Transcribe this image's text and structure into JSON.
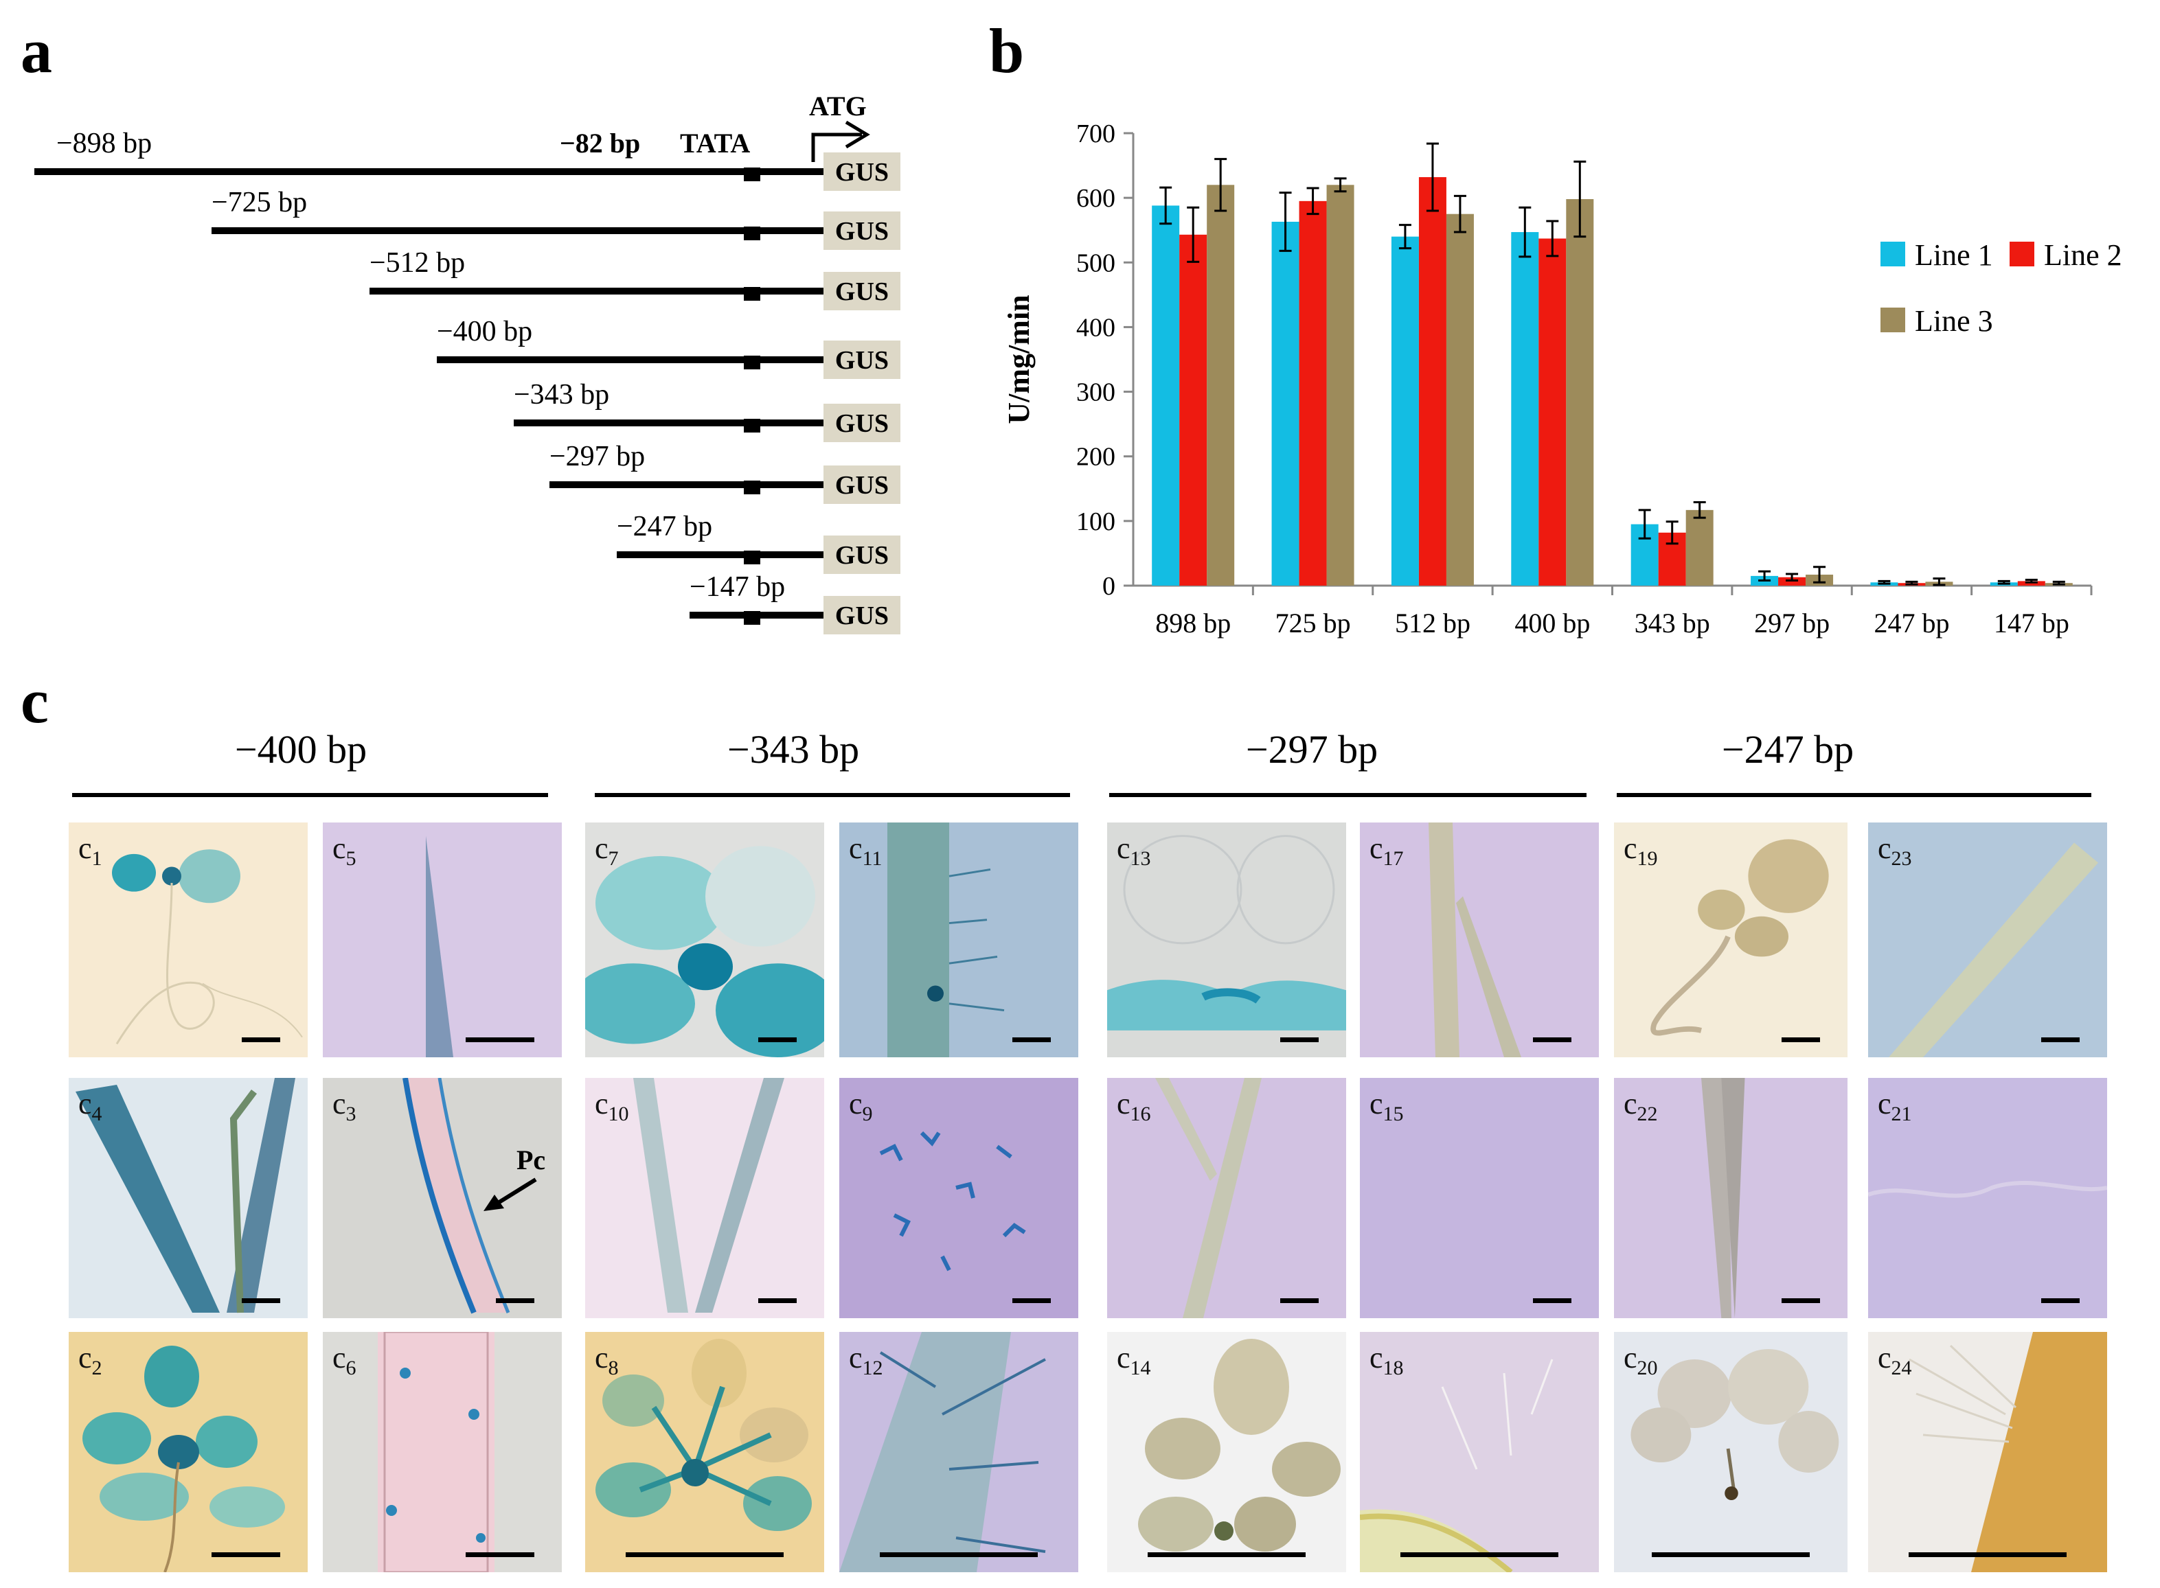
{
  "panel_a": {
    "letter": "a",
    "atg_label": "ATG",
    "tata_pos_label": "−82 bp",
    "tata_label": "TATA",
    "gus_label": "GUS",
    "constructs": [
      {
        "label": "−898 bp"
      },
      {
        "label": "−725 bp"
      },
      {
        "label": "−512 bp"
      },
      {
        "label": "−400 bp"
      },
      {
        "label": "−343 bp"
      },
      {
        "label": "−297 bp"
      },
      {
        "label": "−247 bp"
      },
      {
        "label": "−147 bp"
      }
    ]
  },
  "panel_b": {
    "letter": "b"
  },
  "chart_data": {
    "type": "bar",
    "title": "",
    "xlabel": "",
    "ylabel": "U/mg/min",
    "ylim": [
      0,
      700
    ],
    "yticks": [
      0,
      100,
      200,
      300,
      400,
      500,
      600,
      700
    ],
    "grid": false,
    "legend_position": "right",
    "categories": [
      "898 bp",
      "725 bp",
      "512 bp",
      "400 bp",
      "343 bp",
      "297 bp",
      "247 bp",
      "147 bp"
    ],
    "series": [
      {
        "name": "Line 1",
        "color": "#13bde3",
        "values": [
          588,
          563,
          540,
          547,
          95,
          15,
          5,
          5
        ],
        "errors": [
          28,
          45,
          18,
          38,
          22,
          7,
          2,
          2
        ]
      },
      {
        "name": "Line 2",
        "color": "#ee1a10",
        "values": [
          543,
          595,
          632,
          537,
          82,
          13,
          4,
          7
        ],
        "errors": [
          42,
          20,
          52,
          27,
          17,
          5,
          2,
          2
        ]
      },
      {
        "name": "Line 3",
        "color": "#9d8b5b",
        "values": [
          620,
          620,
          575,
          598,
          117,
          17,
          6,
          4
        ],
        "errors": [
          40,
          10,
          28,
          58,
          12,
          12,
          5,
          2
        ]
      }
    ]
  },
  "panel_c": {
    "letter": "c",
    "groups": [
      {
        "title": "−400 bp"
      },
      {
        "title": "−343 bp"
      },
      {
        "title": "−297 bp"
      },
      {
        "title": "−247 bp"
      }
    ],
    "photos": [
      {
        "base": "c",
        "sub": "1",
        "bg": "#f7ead2"
      },
      {
        "base": "c",
        "sub": "4",
        "bg": "#dfe8ee"
      },
      {
        "base": "c",
        "sub": "2",
        "bg": "#eed59a"
      },
      {
        "base": "c",
        "sub": "5",
        "bg": "#d8c9e6"
      },
      {
        "base": "c",
        "sub": "3",
        "bg": "#d6d6d2"
      },
      {
        "base": "c",
        "sub": "6",
        "bg": "#dcdcd8"
      },
      {
        "base": "c",
        "sub": "7",
        "bg": "#dfe0de"
      },
      {
        "base": "c",
        "sub": "10",
        "bg": "#f1e3ee"
      },
      {
        "base": "c",
        "sub": "8",
        "bg": "#efd49a"
      },
      {
        "base": "c",
        "sub": "11",
        "bg": "#a9c0d6"
      },
      {
        "base": "c",
        "sub": "9",
        "bg": "#b8a5d6"
      },
      {
        "base": "c",
        "sub": "12",
        "bg": "#c8bde0"
      },
      {
        "base": "c",
        "sub": "13",
        "bg": "#d9dbd9"
      },
      {
        "base": "c",
        "sub": "16",
        "bg": "#d2c2e2"
      },
      {
        "base": "c",
        "sub": "14",
        "bg": "#f2f2f2"
      },
      {
        "base": "c",
        "sub": "17",
        "bg": "#d3c3e3"
      },
      {
        "base": "c",
        "sub": "15",
        "bg": "#c5b6df"
      },
      {
        "base": "c",
        "sub": "18",
        "bg": "#ded2e4"
      },
      {
        "base": "c",
        "sub": "19",
        "bg": "#f4ecd9"
      },
      {
        "base": "c",
        "sub": "22",
        "bg": "#d3c4e3"
      },
      {
        "base": "c",
        "sub": "20",
        "bg": "#e4e8ee"
      },
      {
        "base": "c",
        "sub": "23",
        "bg": "#b3c8db"
      },
      {
        "base": "c",
        "sub": "21",
        "bg": "#c7bbe2"
      },
      {
        "base": "c",
        "sub": "24",
        "bg": "#efece8"
      }
    ],
    "pc_label": "Pc"
  }
}
